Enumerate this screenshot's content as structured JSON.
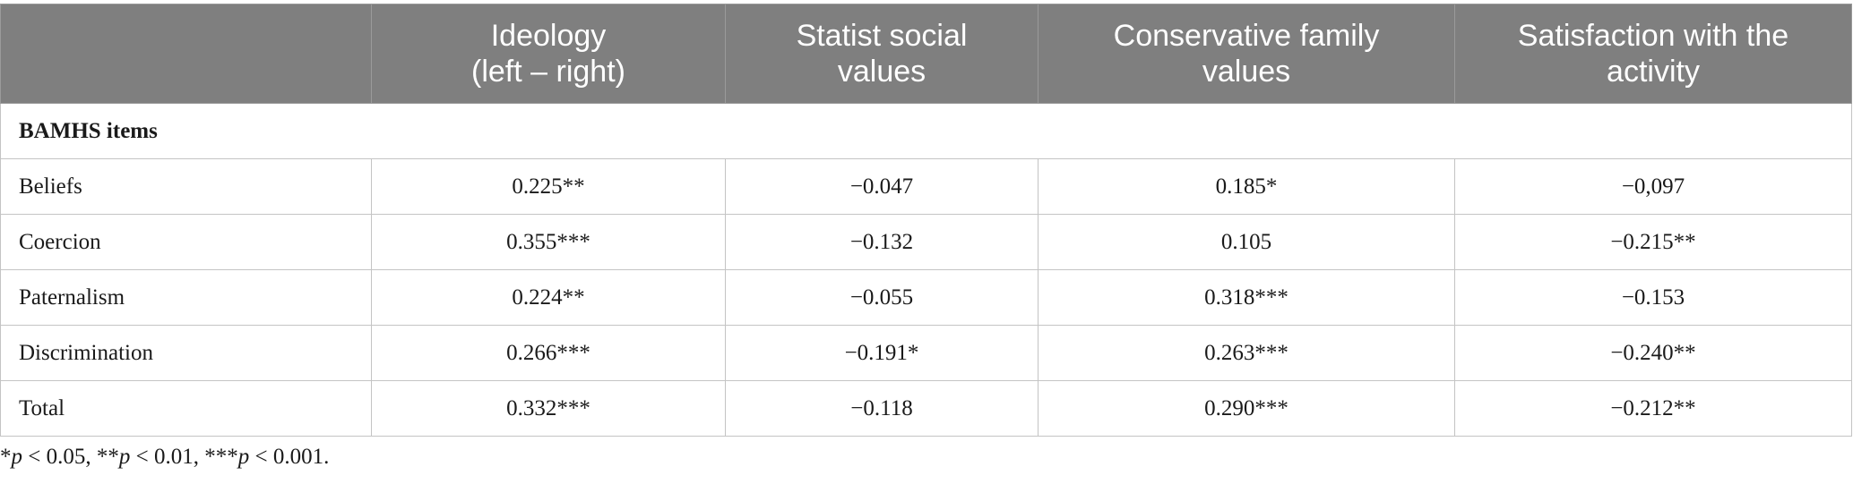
{
  "table": {
    "headers": [
      {
        "lines": [
          ""
        ]
      },
      {
        "lines": [
          "Ideology",
          "(left – right)"
        ]
      },
      {
        "lines": [
          "Statist social",
          "values"
        ]
      },
      {
        "lines": [
          "Conservative family",
          "values"
        ]
      },
      {
        "lines": [
          "Satisfaction with the",
          "activity"
        ]
      }
    ],
    "section_title": "BAMHS items",
    "rows": [
      {
        "label": "Beliefs",
        "values": [
          "0.225**",
          "−0.047",
          "0.185*",
          "−0,097"
        ]
      },
      {
        "label": "Coercion",
        "values": [
          "0.355***",
          "−0.132",
          "0.105",
          "−0.215**"
        ]
      },
      {
        "label": "Paternalism",
        "values": [
          "0.224**",
          "−0.055",
          "0.318***",
          "−0.153"
        ]
      },
      {
        "label": "Discrimination",
        "values": [
          "0.266***",
          "−0.191*",
          "0.263***",
          "−0.240**"
        ]
      },
      {
        "label": "Total",
        "values": [
          "0.332***",
          "−0.118",
          "0.290***",
          "−0.212**"
        ]
      }
    ]
  },
  "footnote": {
    "parts": [
      {
        "text": "*",
        "italic": false
      },
      {
        "text": "p",
        "italic": true
      },
      {
        "text": " < 0.05, **",
        "italic": false
      },
      {
        "text": "p",
        "italic": true
      },
      {
        "text": " < 0.01, ***",
        "italic": false
      },
      {
        "text": "p",
        "italic": true
      },
      {
        "text": " < 0.001.",
        "italic": false
      }
    ]
  }
}
